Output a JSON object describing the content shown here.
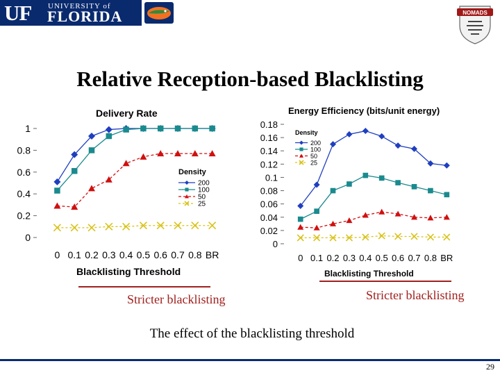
{
  "header": {
    "uf_mono": "UF",
    "uf_univ": "UNIVERSITY of",
    "uf_florida": "FLORIDA",
    "gator_logo": "gator-logo",
    "nomads_logo": "NOMADS"
  },
  "slide": {
    "title": "Relative Reception-based Blacklisting",
    "stricter_left": "Stricter blacklisting",
    "stricter_right": "Stricter blacklisting",
    "caption": "The effect of the blacklisting threshold",
    "page_number": "29"
  },
  "colors": {
    "uf_blue": "#0a2a6e",
    "series_200": "#1f3fbf",
    "series_100": "#1a8a8e",
    "series_50": "#d01010",
    "series_25": "#d9c21a",
    "arrow": "#a0201d"
  },
  "chart_data": [
    {
      "type": "line",
      "title": "Delivery Rate",
      "xlabel": "Blacklisting Threshold",
      "ylabel": "",
      "categories": [
        "0",
        "0.1",
        "0.2",
        "0.3",
        "0.4",
        "0.5",
        "0.6",
        "0.7",
        "0.8",
        "BR"
      ],
      "ylim": [
        0,
        1
      ],
      "yticks": [
        "0",
        "0.2",
        "0.4",
        "0.6",
        "0.8",
        "1"
      ],
      "legend_title": "Density",
      "legend_position": "right",
      "series": [
        {
          "name": "200",
          "marker": "diamond",
          "values": [
            0.51,
            0.76,
            0.93,
            0.99,
            1.0,
            1.0,
            1.0,
            1.0,
            1.0,
            1.0
          ]
        },
        {
          "name": "100",
          "marker": "square",
          "values": [
            0.43,
            0.61,
            0.8,
            0.93,
            0.99,
            1.0,
            1.0,
            1.0,
            1.0,
            1.0
          ]
        },
        {
          "name": "50",
          "marker": "triangle",
          "values": [
            0.29,
            0.28,
            0.45,
            0.53,
            0.68,
            0.74,
            0.77,
            0.77,
            0.77,
            0.77
          ]
        },
        {
          "name": "25",
          "marker": "x",
          "values": [
            0.09,
            0.09,
            0.09,
            0.1,
            0.1,
            0.11,
            0.11,
            0.11,
            0.11,
            0.11
          ]
        }
      ]
    },
    {
      "type": "line",
      "title": "Energy Efficiency (bits/unit energy)",
      "xlabel": "Blacklisting Threshold",
      "ylabel": "",
      "categories": [
        "0",
        "0.1",
        "0.2",
        "0.3",
        "0.4",
        "0.5",
        "0.6",
        "0.7",
        "0.8",
        "BR"
      ],
      "ylim": [
        0,
        0.18
      ],
      "yticks": [
        "0",
        "0.02",
        "0.04",
        "0.06",
        "0.08",
        "0.1",
        "0.12",
        "0.14",
        "0.16",
        "0.18"
      ],
      "legend_title": "Density",
      "legend_position": "top-left",
      "series": [
        {
          "name": "200",
          "marker": "diamond",
          "values": [
            0.057,
            0.089,
            0.15,
            0.165,
            0.17,
            0.162,
            0.148,
            0.143,
            0.121,
            0.118
          ]
        },
        {
          "name": "100",
          "marker": "square",
          "values": [
            0.037,
            0.049,
            0.08,
            0.09,
            0.103,
            0.099,
            0.092,
            0.086,
            0.08,
            0.074
          ]
        },
        {
          "name": "50",
          "marker": "triangle",
          "values": [
            0.025,
            0.024,
            0.03,
            0.035,
            0.043,
            0.048,
            0.045,
            0.04,
            0.039,
            0.04
          ]
        },
        {
          "name": "25",
          "marker": "x",
          "values": [
            0.009,
            0.009,
            0.009,
            0.009,
            0.01,
            0.012,
            0.011,
            0.011,
            0.01,
            0.01
          ]
        }
      ]
    }
  ]
}
